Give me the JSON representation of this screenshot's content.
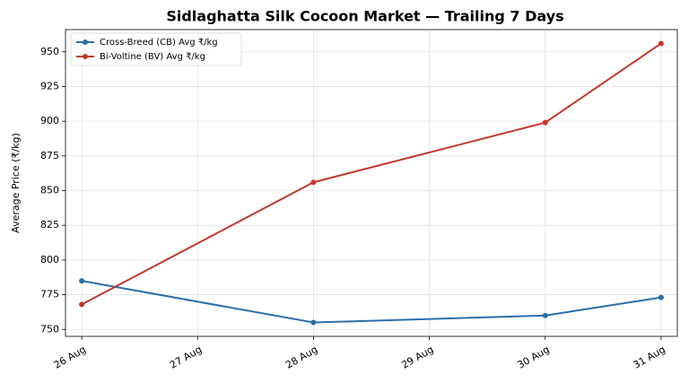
{
  "chart_data": {
    "type": "line",
    "title": "Sidlaghatta Silk Cocoon Market — Trailing 7 Days",
    "y_label": "Average Price (₹/kg)",
    "x": [
      "26 Aug",
      "28 Aug",
      "30 Aug",
      "31 Aug"
    ],
    "xticks": [
      "26 Aug",
      "27 Aug",
      "28 Aug",
      "29 Aug",
      "30 Aug",
      "31 Aug"
    ],
    "series": [
      {
        "name": "Cross-Breed (CB) Avg ₹/kg",
        "color": "#2a6fa8",
        "values": [
          785,
          755,
          760,
          773
        ]
      },
      {
        "name": "Bi-Voltine (BV) Avg ₹/kg",
        "color": "#c0392b",
        "values": [
          768,
          856,
          899,
          956
        ]
      }
    ],
    "ylim": [
      745,
      966
    ],
    "yticks": [
      750,
      775,
      800,
      825,
      850,
      875,
      900,
      925,
      950
    ],
    "grid": true,
    "legend": "upper-left"
  }
}
